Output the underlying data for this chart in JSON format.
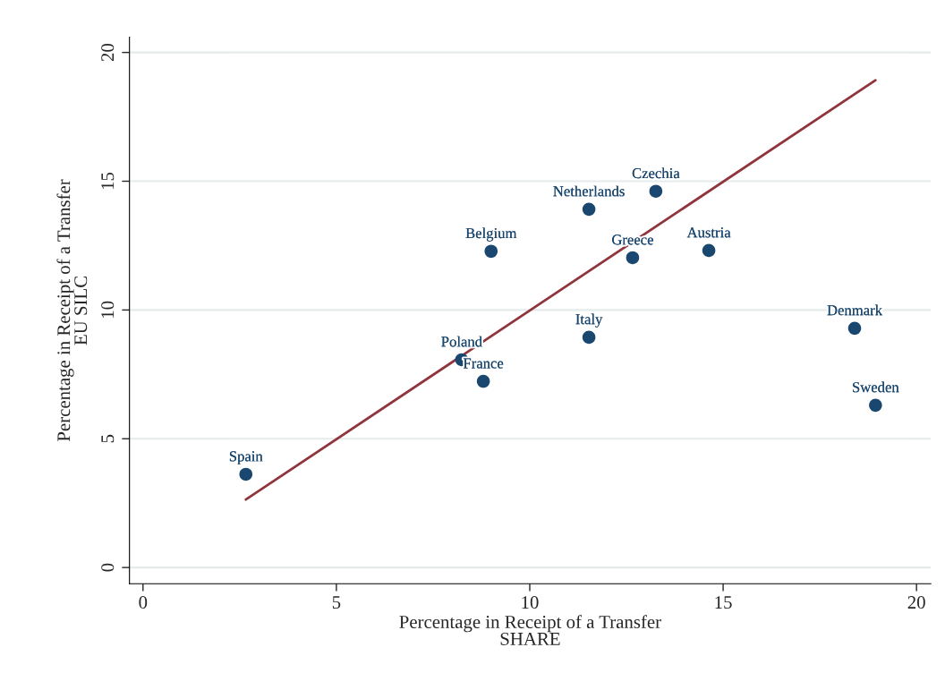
{
  "chart_data": {
    "type": "scatter",
    "xlabel": "Percentage in Receipt of a Transfer\nSHARE",
    "ylabel": "Percentage in Receipt of a Transfer\nEU SILC",
    "xlim": [
      -0.35,
      20.37
    ],
    "ylim": [
      -0.63,
      20.59
    ],
    "xticks": [
      0,
      5,
      10,
      15,
      20
    ],
    "yticks": [
      0,
      5,
      10,
      15,
      20
    ],
    "grid": "y",
    "legend": false,
    "marker": "circle",
    "series": [
      {
        "color": "#1a476f",
        "x": [
          2.66,
          8.24,
          8.8,
          9.0,
          11.53,
          11.53,
          12.66,
          13.26,
          14.63,
          18.4,
          18.94
        ],
        "values": [
          3.62,
          8.07,
          7.23,
          12.28,
          8.94,
          13.91,
          12.03,
          14.61,
          12.31,
          9.29,
          6.3
        ]
      },
      {
        "type": "line",
        "color": "#90353b",
        "line_style": "solid",
        "marker": "none",
        "x": [
          2.66,
          18.94
        ],
        "values": [
          2.64,
          18.92
        ]
      }
    ],
    "annotations": [
      {
        "text": "Spain",
        "x": 2.66,
        "y": 3.62
      },
      {
        "text": "Poland",
        "x": 8.24,
        "y": 8.07
      },
      {
        "text": "France",
        "x": 8.8,
        "y": 7.23
      },
      {
        "text": "Belgium",
        "x": 9.0,
        "y": 12.28
      },
      {
        "text": "Italy",
        "x": 11.53,
        "y": 8.94
      },
      {
        "text": "Netherlands",
        "x": 11.53,
        "y": 13.91
      },
      {
        "text": "Greece",
        "x": 12.66,
        "y": 12.03
      },
      {
        "text": "Czechia",
        "x": 13.26,
        "y": 14.61
      },
      {
        "text": "Austria",
        "x": 14.63,
        "y": 12.31
      },
      {
        "text": "Denmark",
        "x": 18.4,
        "y": 9.29
      },
      {
        "text": "Sweden",
        "x": 18.94,
        "y": 6.3
      }
    ]
  }
}
